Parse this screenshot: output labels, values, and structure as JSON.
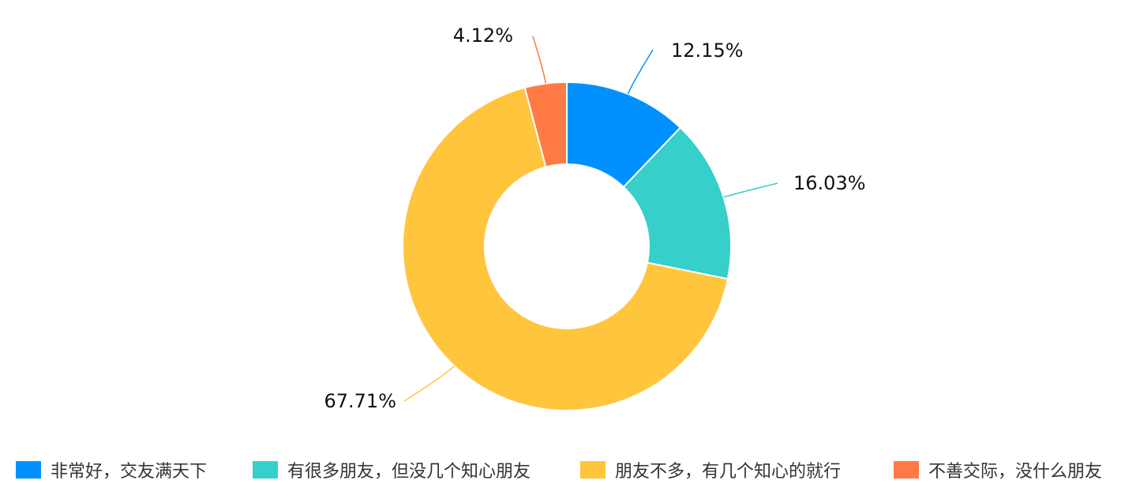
{
  "chart_data": {
    "type": "pie",
    "variant": "donut",
    "slices": [
      {
        "label": "非常好，交友满天下",
        "value": 12.15,
        "display": "12.15%",
        "color": "#0091ff"
      },
      {
        "label": "有很多朋友，但没几个知心朋友",
        "value": 16.03,
        "display": "16.03%",
        "color": "#36cfc9"
      },
      {
        "label": "朋友不多，有几个知心的就行",
        "value": 67.71,
        "display": "67.71%",
        "color": "#ffc53d"
      },
      {
        "label": "不善交际，没什么朋友",
        "value": 4.12,
        "display": "4.12%",
        "color": "#ff7a45"
      }
    ],
    "legend_position": "bottom"
  }
}
